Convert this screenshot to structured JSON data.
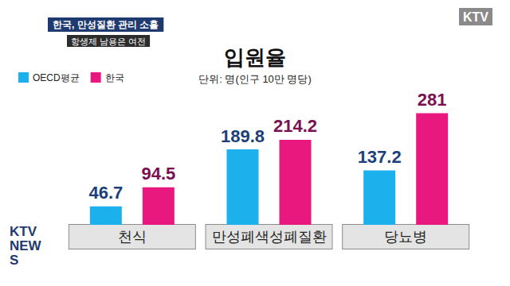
{
  "chart_data": {
    "type": "bar",
    "title": "입원율",
    "subtitle": "단위: 명(인구 10만 명당)",
    "annotations": [
      "한국, 만성질환 관리 소홀",
      "항생제 남용은 여전",
      "KTV",
      "KTV NEWS"
    ],
    "categories": [
      "천식",
      "만성폐색성폐질환",
      "당뇨병"
    ],
    "series": [
      {
        "name": "OECD평균",
        "color": "#1cb0ec",
        "values": [
          46.7,
          189.8,
          137.2
        ]
      },
      {
        "name": "한국",
        "color": "#e8187f",
        "values": [
          94.5,
          214.2,
          281
        ]
      }
    ],
    "ylim": [
      0,
      300
    ],
    "grid": false,
    "legend": "top-left",
    "data_labels": true,
    "tick_labels": "x"
  }
}
